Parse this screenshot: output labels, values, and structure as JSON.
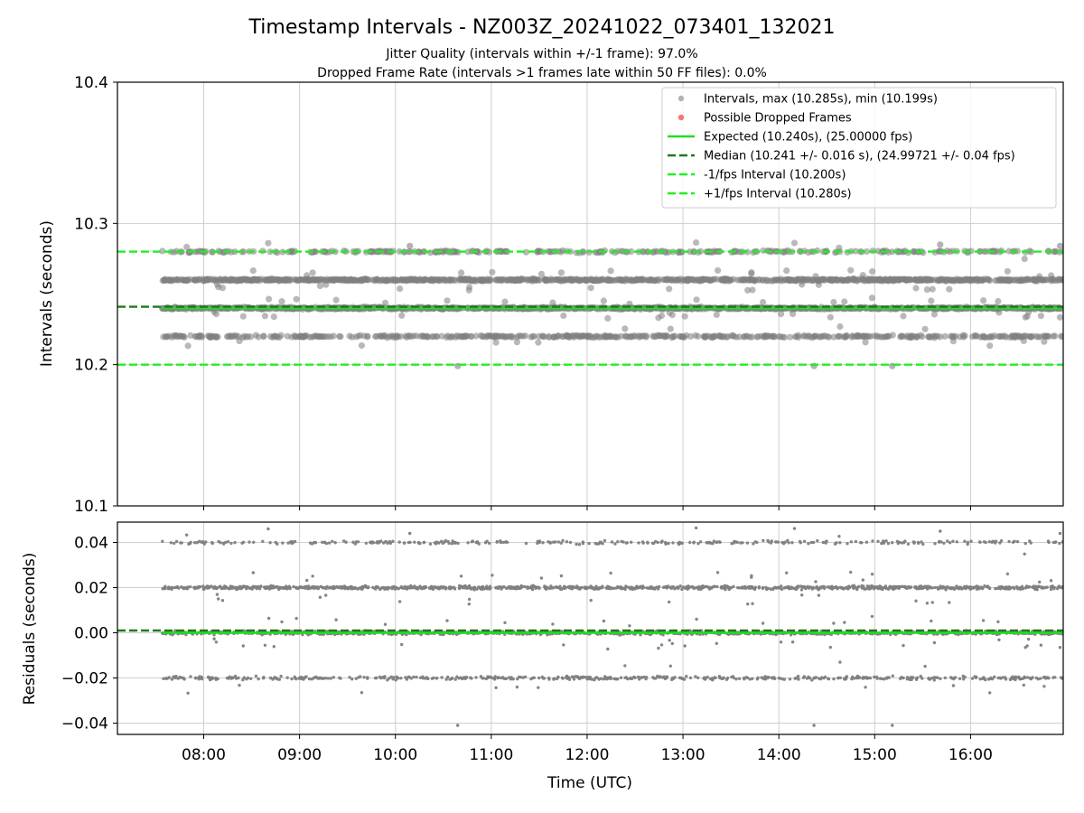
{
  "figure": {
    "title": "Timestamp Intervals - NZ003Z_20241022_073401_132021",
    "subtitle_jitter": "Jitter Quality (intervals within +/-1 frame): 97.0%",
    "subtitle_dropped": "Dropped Frame Rate (intervals >1 frames late within 50 FF files): 0.0%"
  },
  "colors": {
    "points": "#808080",
    "dropped": "#ff5a5a",
    "expected": "#22dd22",
    "median": "#1a7a1a",
    "fps_interval": "#22ee22",
    "grid": "#cfcfcf"
  },
  "chart_data": [
    {
      "type": "scatter",
      "panel": "intervals",
      "ylabel": "Intervals (seconds)",
      "xlabel": "",
      "xlim": [
        "07:06",
        "16:58"
      ],
      "ylim": [
        10.1,
        10.4
      ],
      "yticks": [
        10.1,
        10.2,
        10.3,
        10.4
      ],
      "ytick_labels": [
        "10.1",
        "10.2",
        "10.3",
        "10.4"
      ],
      "grid": true,
      "legend_position": "top-right",
      "series": [
        {
          "name": "Intervals, max (10.285s), min (10.199s)",
          "kind": "points",
          "time_range": [
            "07:34",
            "16:58"
          ],
          "value_levels": [
            10.22,
            10.24,
            10.26,
            10.28
          ],
          "max": 10.285,
          "min": 10.199
        },
        {
          "name": "Possible Dropped Frames",
          "kind": "points",
          "count": 0
        },
        {
          "name": "Expected (10.240s), (25.00000 fps)",
          "kind": "hline",
          "y": 10.24,
          "style": "solid"
        },
        {
          "name": "Median (10.241 +/- 0.016 s), (24.99721 +/- 0.04 fps)",
          "kind": "hline",
          "y": 10.241,
          "style": "dashed"
        },
        {
          "name": "-1/fps Interval (10.200s)",
          "kind": "hline",
          "y": 10.2,
          "style": "dashed"
        },
        {
          "name": "+1/fps Interval (10.280s)",
          "kind": "hline",
          "y": 10.28,
          "style": "dashed"
        }
      ]
    },
    {
      "type": "scatter",
      "panel": "residuals",
      "ylabel": "Residuals (seconds)",
      "xlabel": "Time (UTC)",
      "xlim": [
        "07:06",
        "16:58"
      ],
      "ylim": [
        -0.045,
        0.049
      ],
      "yticks": [
        -0.04,
        -0.02,
        0.0,
        0.02,
        0.04
      ],
      "ytick_labels": [
        "−0.04",
        "−0.02",
        "0.00",
        "0.02",
        "0.04"
      ],
      "xticks": [
        "08:00",
        "09:00",
        "10:00",
        "11:00",
        "12:00",
        "13:00",
        "14:00",
        "15:00",
        "16:00"
      ],
      "xtick_labels": [
        "08:00",
        "09:00",
        "10:00",
        "11:00",
        "12:00",
        "13:00",
        "14:00",
        "15:00",
        "16:00"
      ],
      "grid": true,
      "series": [
        {
          "kind": "points",
          "time_range": [
            "07:34",
            "16:58"
          ],
          "value_levels": [
            -0.02,
            0.0,
            0.02,
            0.04
          ]
        },
        {
          "kind": "hline",
          "y": 0.0,
          "style": "solid",
          "role": "expected"
        },
        {
          "kind": "hline",
          "y": 0.001,
          "style": "dashed",
          "role": "median"
        }
      ]
    }
  ]
}
